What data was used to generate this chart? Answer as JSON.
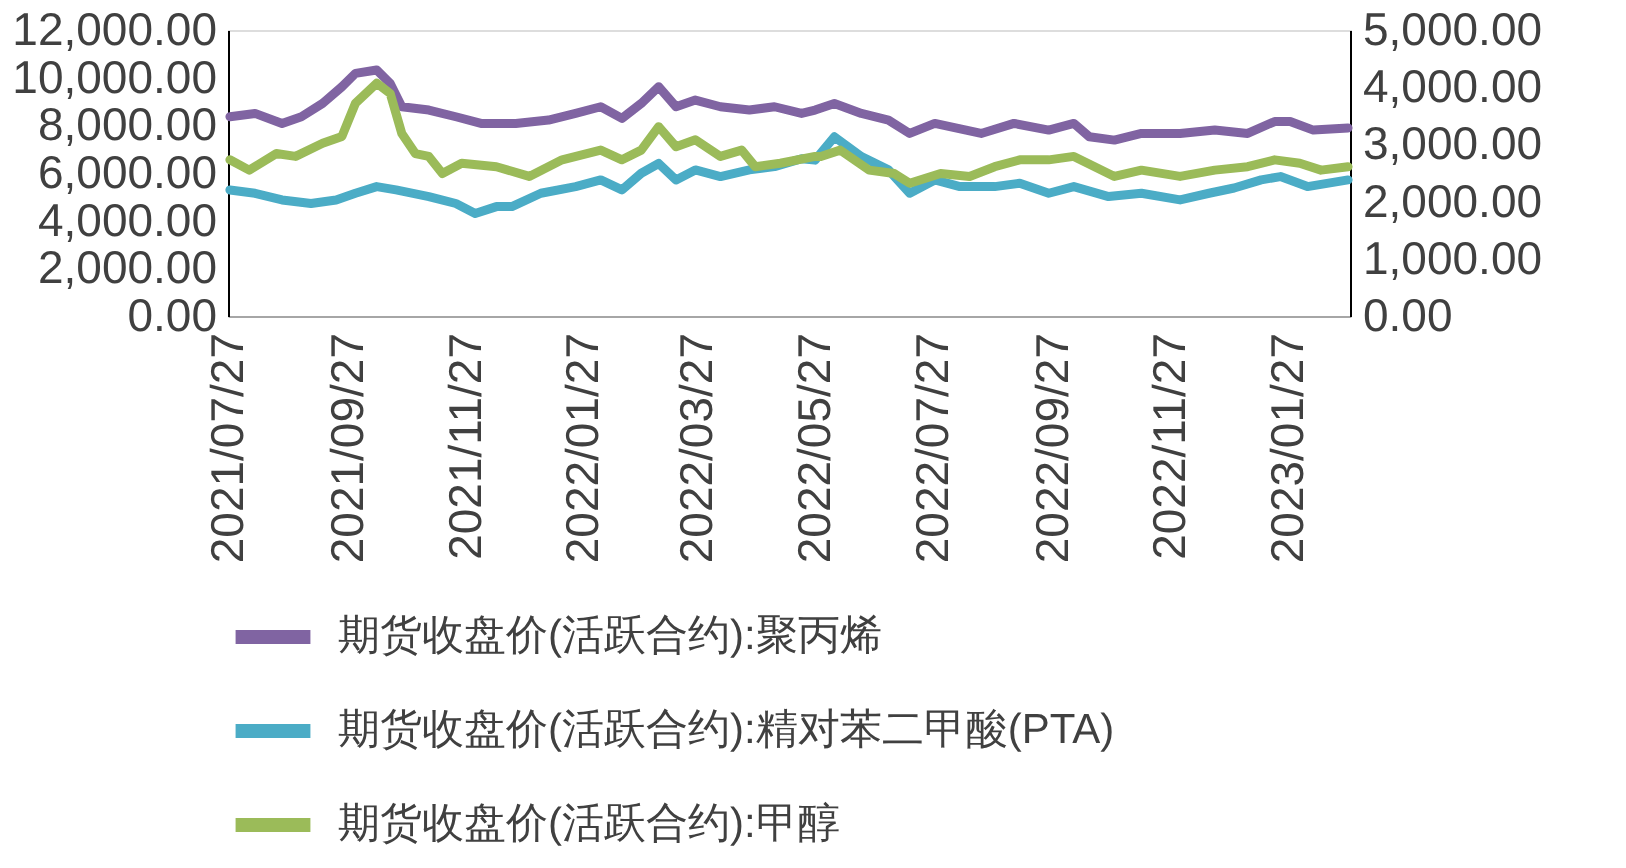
{
  "chart_data": {
    "type": "line",
    "legend": "bottom",
    "line_style": "solid",
    "marker": "none",
    "grid": false,
    "xlim": [
      "2021-07-27",
      "2023-02-28"
    ],
    "xticks": [
      {
        "value": "2021-07-27",
        "label": "2021/07/27"
      },
      {
        "value": "2021-09-27",
        "label": "2021/09/27"
      },
      {
        "value": "2021-11-27",
        "label": "2021/11/27"
      },
      {
        "value": "2022-01-27",
        "label": "2022/01/27"
      },
      {
        "value": "2022-03-27",
        "label": "2022/03/27"
      },
      {
        "value": "2022-05-27",
        "label": "2022/05/27"
      },
      {
        "value": "2022-07-27",
        "label": "2022/07/27"
      },
      {
        "value": "2022-09-27",
        "label": "2022/09/27"
      },
      {
        "value": "2022-11-27",
        "label": "2022/11/27"
      },
      {
        "value": "2023-01-27",
        "label": "2023/01/27"
      }
    ],
    "ylim": [
      0,
      12000
    ],
    "yticks": [
      {
        "value": 0,
        "label": "0.00"
      },
      {
        "value": 2000,
        "label": "2,000.00"
      },
      {
        "value": 4000,
        "label": "4,000.00"
      },
      {
        "value": 6000,
        "label": "6,000.00"
      },
      {
        "value": 8000,
        "label": "8,000.00"
      },
      {
        "value": 10000,
        "label": "10,000.00"
      },
      {
        "value": 12000,
        "label": "12,000.00"
      }
    ],
    "y2lim": [
      0,
      5000
    ],
    "y2ticks": [
      {
        "value": 0,
        "label": "0.00"
      },
      {
        "value": 1000,
        "label": "1,000.00"
      },
      {
        "value": 2000,
        "label": "2,000.00"
      },
      {
        "value": 3000,
        "label": "3,000.00"
      },
      {
        "value": 4000,
        "label": "4,000.00"
      },
      {
        "value": 5000,
        "label": "5,000.00"
      }
    ],
    "series": [
      {
        "name": "期货收盘价(活跃合约):聚丙烯",
        "color": "#8064a2",
        "x": [
          "2021-07-28",
          "2021-08-10",
          "2021-08-24",
          "2021-09-03",
          "2021-09-14",
          "2021-09-24",
          "2021-10-01",
          "2021-10-12",
          "2021-10-19",
          "2021-10-25",
          "2021-11-08",
          "2021-11-22",
          "2021-12-05",
          "2021-12-23",
          "2022-01-09",
          "2022-01-23",
          "2022-02-05",
          "2022-02-16",
          "2022-02-26",
          "2022-03-07",
          "2022-03-16",
          "2022-03-26",
          "2022-04-08",
          "2022-04-23",
          "2022-05-06",
          "2022-05-20",
          "2022-05-27",
          "2022-06-06",
          "2022-06-20",
          "2022-07-04",
          "2022-07-15",
          "2022-07-28",
          "2022-08-21",
          "2022-09-07",
          "2022-09-25",
          "2022-10-08",
          "2022-10-16",
          "2022-10-29",
          "2022-11-12",
          "2022-12-02",
          "2022-12-20",
          "2023-01-06",
          "2023-01-20",
          "2023-01-28",
          "2023-02-09",
          "2023-02-27"
        ],
        "values": [
          8360,
          8500,
          8080,
          8360,
          8920,
          9620,
          10180,
          10320,
          9760,
          8780,
          8640,
          8360,
          8080,
          8080,
          8220,
          8500,
          8780,
          8290,
          8920,
          9620,
          8780,
          9060,
          8780,
          8640,
          8780,
          8500,
          8640,
          8920,
          8500,
          8220,
          7660,
          8080,
          7660,
          8080,
          7800,
          8080,
          7520,
          7380,
          7660,
          7660,
          7800,
          7660,
          8160,
          8160,
          7800,
          7890
        ]
      },
      {
        "name": "期货收盘价(活跃合约):精对苯二甲酸(PTA)",
        "color": "#4bacc6",
        "x": [
          "2021-07-28",
          "2021-08-10",
          "2021-08-24",
          "2021-09-08",
          "2021-09-21",
          "2021-10-01",
          "2021-10-12",
          "2021-10-22",
          "2021-11-08",
          "2021-11-22",
          "2021-12-02",
          "2021-12-13",
          "2021-12-21",
          "2022-01-05",
          "2022-01-23",
          "2022-02-05",
          "2022-02-16",
          "2022-02-26",
          "2022-03-07",
          "2022-03-16",
          "2022-03-26",
          "2022-04-08",
          "2022-04-23",
          "2022-05-06",
          "2022-05-20",
          "2022-05-27",
          "2022-06-06",
          "2022-06-20",
          "2022-07-04",
          "2022-07-15",
          "2022-07-28",
          "2022-08-10",
          "2022-08-28",
          "2022-09-10",
          "2022-09-25",
          "2022-10-08",
          "2022-10-26",
          "2022-11-12",
          "2022-12-02",
          "2022-12-17",
          "2022-12-30",
          "2023-01-13",
          "2023-01-23",
          "2023-02-06",
          "2023-02-27"
        ],
        "values": [
          5290,
          5150,
          4870,
          4720,
          4870,
          5150,
          5430,
          5290,
          5010,
          4720,
          4300,
          4590,
          4590,
          5150,
          5430,
          5710,
          5290,
          5990,
          6400,
          5710,
          6130,
          5850,
          6130,
          6270,
          6600,
          6540,
          7520,
          6690,
          6130,
          5150,
          5710,
          5430,
          5430,
          5570,
          5150,
          5430,
          5010,
          5150,
          4870,
          5150,
          5370,
          5710,
          5850,
          5430,
          5710
        ]
      },
      {
        "name": "期货收盘价(活跃合约):甲醇",
        "color": "#9bbb59",
        "axis": "y2",
        "x": [
          "2021-07-28",
          "2021-08-07",
          "2021-08-21",
          "2021-08-31",
          "2021-09-14",
          "2021-09-24",
          "2021-10-01",
          "2021-10-12",
          "2021-10-19",
          "2021-10-25",
          "2021-11-01",
          "2021-11-08",
          "2021-11-15",
          "2021-11-25",
          "2021-12-13",
          "2021-12-30",
          "2022-01-16",
          "2022-02-05",
          "2022-02-16",
          "2022-02-26",
          "2022-03-07",
          "2022-03-16",
          "2022-03-26",
          "2022-04-08",
          "2022-04-19",
          "2022-04-26",
          "2022-05-09",
          "2022-05-27",
          "2022-05-30",
          "2022-06-09",
          "2022-06-24",
          "2022-07-07",
          "2022-07-15",
          "2022-07-31",
          "2022-08-15",
          "2022-08-28",
          "2022-09-10",
          "2022-09-25",
          "2022-10-08",
          "2022-10-29",
          "2022-11-12",
          "2022-12-02",
          "2022-12-20",
          "2023-01-06",
          "2023-01-20",
          "2023-02-02",
          "2023-02-13",
          "2023-02-27"
        ],
        "values": [
          2730,
          2550,
          2840,
          2790,
          3020,
          3140,
          3720,
          4070,
          3890,
          3190,
          2840,
          2790,
          2490,
          2670,
          2610,
          2440,
          2730,
          2900,
          2730,
          2900,
          3310,
          2960,
          3080,
          2790,
          2900,
          2610,
          2670,
          2790,
          2790,
          2900,
          2550,
          2490,
          2320,
          2490,
          2440,
          2610,
          2730,
          2730,
          2790,
          2440,
          2550,
          2440,
          2550,
          2610,
          2730,
          2670,
          2550,
          2610
        ]
      }
    ]
  }
}
